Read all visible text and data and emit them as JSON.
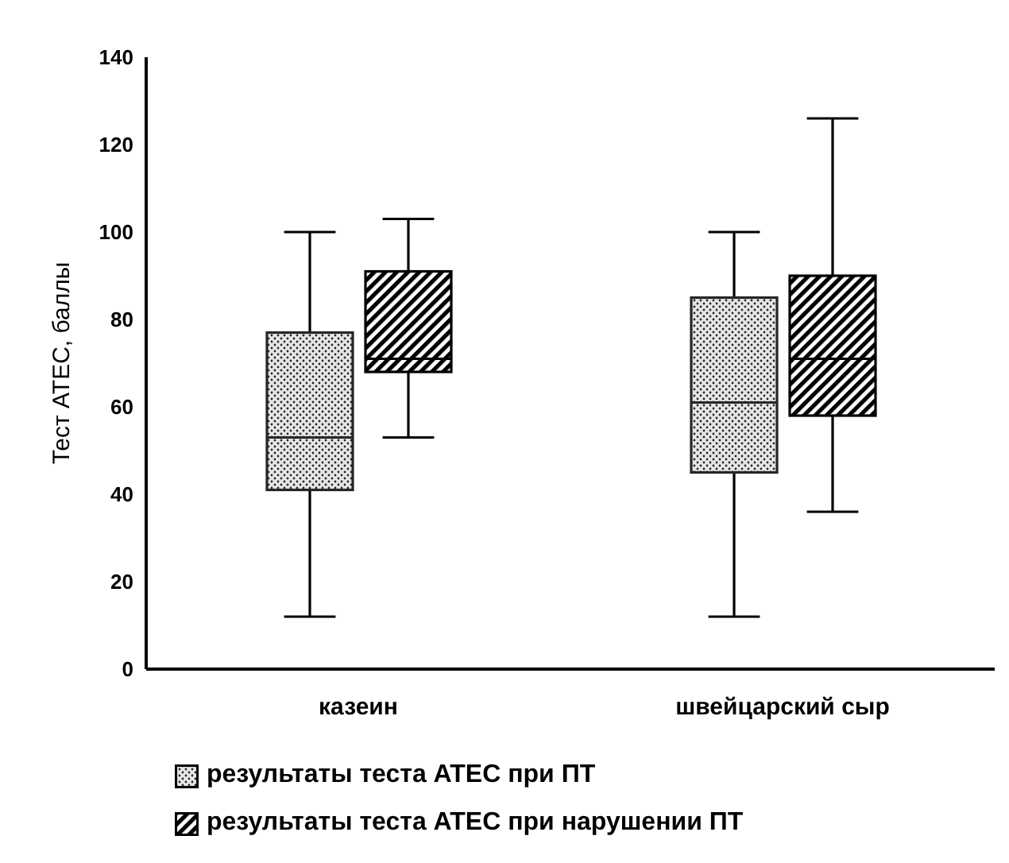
{
  "chart_data": {
    "type": "box",
    "ylabel": "Тест ATEC, баллы",
    "categories": [
      "казеин",
      "швейцарский сыр"
    ],
    "series": [
      {
        "name": "результаты теста ATEC при ПТ",
        "color": "#262626",
        "boxes": [
          {
            "low": 12,
            "q1": 41,
            "median": 53,
            "q3": 77,
            "high": 100
          },
          {
            "low": 12,
            "q1": 45,
            "median": 61,
            "q3": 85,
            "high": 100
          }
        ]
      },
      {
        "name": "результаты теста ATEC при нарушении ПТ",
        "color": "#000000",
        "boxes": [
          {
            "low": 53,
            "q1": 68,
            "median": 71,
            "q3": 91,
            "high": 103
          },
          {
            "low": 36,
            "q1": 58,
            "median": 71,
            "q3": 90,
            "high": 126
          }
        ]
      }
    ],
    "ylim": [
      0,
      140
    ],
    "yticks": [
      0,
      20,
      40,
      60,
      80,
      100,
      120,
      140
    ],
    "grid": false,
    "legend": "bottom"
  }
}
